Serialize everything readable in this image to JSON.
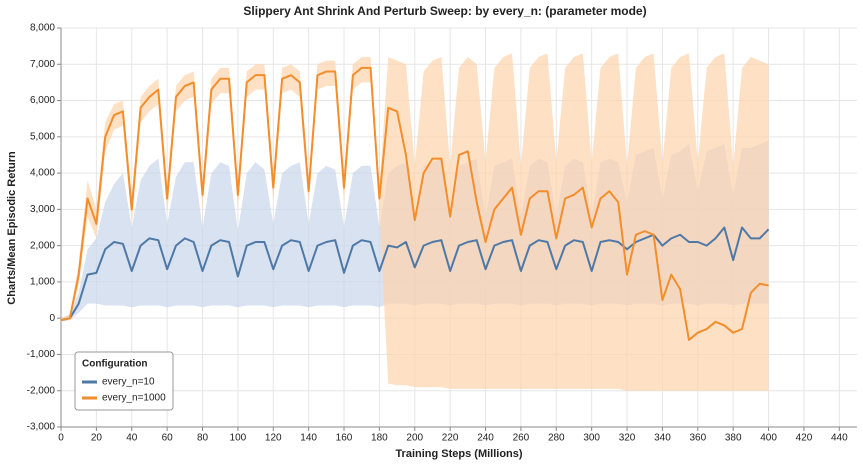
{
  "chart_data": {
    "type": "line",
    "title": "Slippery Ant Shrink And Perturb Sweep: by every_n: (parameter mode)",
    "x_label": "Training Steps (Millions)",
    "y_label": "Charts/Mean Episodic Return",
    "legend_title": "Configuration",
    "legend_position": "lower left",
    "grid": true,
    "xlim": [
      0,
      450
    ],
    "ylim": [
      -3000,
      8000
    ],
    "xticks": [
      0,
      20,
      40,
      60,
      80,
      100,
      120,
      140,
      160,
      180,
      200,
      220,
      240,
      260,
      280,
      300,
      320,
      340,
      360,
      380,
      400,
      420,
      440
    ],
    "yticks": [
      {
        "value": -3000,
        "label": "-3,000"
      },
      {
        "value": -2000,
        "label": "-2,000"
      },
      {
        "value": -1000,
        "label": "-1,000"
      },
      0,
      {
        "value": 1000,
        "label": "1,000"
      },
      {
        "value": 2000,
        "label": "2,000"
      },
      {
        "value": 3000,
        "label": "3,000"
      },
      {
        "value": 4000,
        "label": "4,000"
      },
      {
        "value": 5000,
        "label": "5,000"
      },
      {
        "value": 6000,
        "label": "6,000"
      },
      {
        "value": 7000,
        "label": "7,000"
      },
      {
        "value": 8000,
        "label": "8,000"
      }
    ],
    "x": [
      0,
      5,
      10,
      15,
      20,
      25,
      30,
      35,
      40,
      45,
      50,
      55,
      60,
      65,
      70,
      75,
      80,
      85,
      90,
      95,
      100,
      105,
      110,
      115,
      120,
      125,
      130,
      135,
      140,
      145,
      150,
      155,
      160,
      165,
      170,
      175,
      180,
      185,
      190,
      195,
      200,
      205,
      210,
      215,
      220,
      225,
      230,
      235,
      240,
      245,
      250,
      255,
      260,
      265,
      270,
      275,
      280,
      285,
      290,
      295,
      300,
      305,
      310,
      315,
      320,
      325,
      330,
      335,
      340,
      345,
      350,
      355,
      360,
      365,
      370,
      375,
      380,
      385,
      390,
      395,
      400
    ],
    "series": [
      {
        "name": "every_n=10",
        "color": "#4e79a7",
        "band_color": "#c9d6ea",
        "values": [
          -50,
          0,
          400,
          1200,
          1250,
          1900,
          2100,
          2050,
          1300,
          2000,
          2200,
          2150,
          1350,
          2000,
          2200,
          2100,
          1300,
          2000,
          2150,
          2100,
          1150,
          2000,
          2100,
          2100,
          1350,
          2000,
          2150,
          2100,
          1300,
          2000,
          2100,
          2150,
          1250,
          2000,
          2150,
          2100,
          1300,
          2000,
          1950,
          2100,
          1400,
          2000,
          2100,
          2150,
          1300,
          2000,
          2100,
          2150,
          1350,
          2000,
          2100,
          2150,
          1300,
          2000,
          2150,
          2100,
          1350,
          2000,
          2150,
          2100,
          1300,
          2100,
          2150,
          2100,
          1900,
          2100,
          2200,
          2300,
          2000,
          2200,
          2300,
          2100,
          2100,
          2000,
          2200,
          2500,
          1600,
          2500,
          2200,
          2200,
          2450
        ],
        "upper": [
          0,
          100,
          700,
          1900,
          2200,
          3200,
          3700,
          4000,
          2500,
          3800,
          4200,
          4400,
          2600,
          3900,
          4300,
          4300,
          2500,
          4000,
          4300,
          4200,
          2400,
          4000,
          4300,
          4100,
          2600,
          4000,
          4200,
          4300,
          2600,
          4000,
          4200,
          4100,
          2500,
          4000,
          4200,
          4200,
          2500,
          4000,
          4200,
          4300,
          2800,
          4200,
          4300,
          4400,
          2800,
          4200,
          4300,
          4400,
          2800,
          4200,
          4300,
          4400,
          2800,
          4200,
          4400,
          4300,
          2800,
          4200,
          4400,
          4300,
          2800,
          4300,
          4400,
          4300,
          3200,
          4500,
          4600,
          4700,
          3300,
          4500,
          4600,
          4800,
          3500,
          4600,
          4700,
          4800,
          3400,
          4700,
          4700,
          4800,
          4900
        ],
        "lower": [
          -100,
          -50,
          150,
          400,
          400,
          350,
          350,
          350,
          300,
          350,
          350,
          350,
          300,
          350,
          350,
          350,
          300,
          350,
          350,
          350,
          300,
          350,
          350,
          350,
          300,
          350,
          350,
          350,
          300,
          350,
          350,
          350,
          300,
          350,
          350,
          350,
          300,
          400,
          400,
          400,
          350,
          400,
          400,
          400,
          350,
          400,
          400,
          400,
          350,
          400,
          400,
          400,
          350,
          400,
          400,
          400,
          350,
          400,
          400,
          400,
          350,
          400,
          400,
          400,
          350,
          400,
          400,
          400,
          350,
          400,
          400,
          400,
          350,
          400,
          400,
          400,
          350,
          400,
          400,
          400,
          400
        ]
      },
      {
        "name": "every_n=1000",
        "color": "#f28e2b",
        "band_color": "#fdd3ad",
        "values": [
          -50,
          0,
          1200,
          3300,
          2600,
          5000,
          5600,
          5700,
          3000,
          5800,
          6100,
          6300,
          3300,
          6100,
          6400,
          6500,
          3400,
          6300,
          6600,
          6600,
          3400,
          6500,
          6700,
          6700,
          3600,
          6600,
          6700,
          6500,
          3500,
          6700,
          6800,
          6800,
          3600,
          6700,
          6900,
          6900,
          3300,
          5800,
          5700,
          4500,
          2700,
          4000,
          4400,
          4400,
          2800,
          4500,
          4600,
          3200,
          2100,
          3000,
          3300,
          3600,
          2300,
          3300,
          3500,
          3500,
          2200,
          3300,
          3400,
          3600,
          2500,
          3300,
          3500,
          3200,
          1200,
          2300,
          2400,
          2300,
          500,
          1200,
          800,
          -600,
          -400,
          -300,
          -100,
          -200,
          -400,
          -300,
          700,
          950,
          900
        ],
        "upper": [
          0,
          100,
          1500,
          3800,
          3000,
          5400,
          5900,
          6000,
          3300,
          6100,
          6400,
          6600,
          3600,
          6400,
          6700,
          6800,
          3700,
          6600,
          6900,
          6900,
          3700,
          6800,
          7000,
          7000,
          3900,
          6900,
          7000,
          6800,
          3800,
          7000,
          7100,
          7100,
          3900,
          7000,
          7200,
          7200,
          3600,
          7200,
          7100,
          7000,
          4200,
          6800,
          7100,
          7200,
          4200,
          6900,
          7200,
          7000,
          4300,
          6900,
          7200,
          7300,
          4200,
          6900,
          7200,
          7300,
          4300,
          6900,
          7200,
          7300,
          4300,
          6900,
          7200,
          7300,
          4200,
          6900,
          7200,
          7300,
          4300,
          6900,
          7200,
          7300,
          4300,
          6900,
          7200,
          7300,
          4200,
          6900,
          7200,
          7100,
          7000
        ],
        "lower": [
          -100,
          -50,
          900,
          2800,
          2200,
          4600,
          5200,
          5300,
          2600,
          5400,
          5700,
          5900,
          2900,
          5700,
          6000,
          6100,
          3000,
          5900,
          6200,
          6200,
          3000,
          6100,
          6300,
          6300,
          3200,
          6200,
          6300,
          6100,
          3100,
          6300,
          6400,
          6400,
          3200,
          6300,
          6500,
          6500,
          2900,
          -1800,
          -1850,
          -1850,
          -1900,
          -1900,
          -1900,
          -1900,
          -1950,
          -1950,
          -1950,
          -1950,
          -1950,
          -1950,
          -1950,
          -1950,
          -1950,
          -1950,
          -1950,
          -1950,
          -1950,
          -1950,
          -1950,
          -1950,
          -1950,
          -1950,
          -1950,
          -1950,
          -2000,
          -2000,
          -2000,
          -2000,
          -2000,
          -2000,
          -2000,
          -2000,
          -2000,
          -2000,
          -2000,
          -2000,
          -2000,
          -2000,
          -2000,
          -2000,
          -2000
        ]
      }
    ]
  }
}
